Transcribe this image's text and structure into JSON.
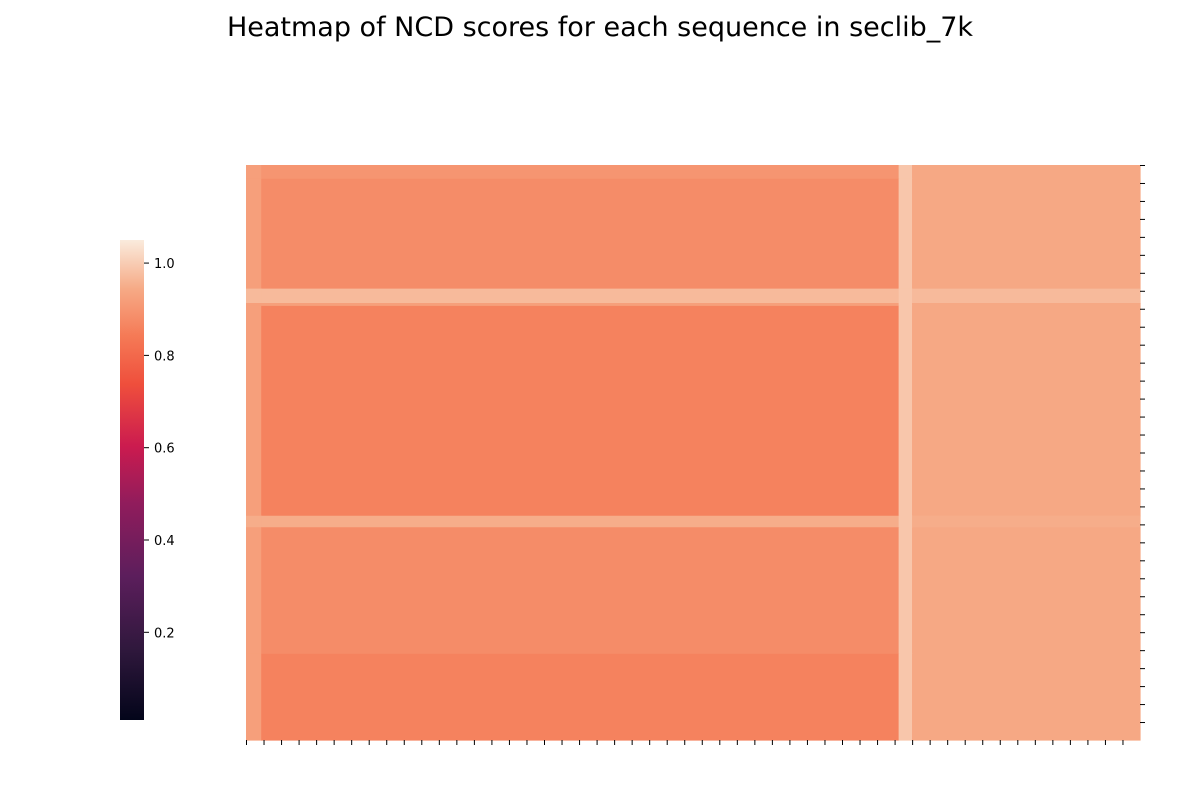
{
  "chart_data": {
    "type": "heatmap",
    "title": "Heatmap of NCD scores for each sequence in seclib_7k",
    "xlabel": "",
    "ylabel": "",
    "grid": false,
    "colormap": "rocket",
    "colorbar": {
      "range": [
        0.01,
        1.05
      ],
      "ticks": [
        0.2,
        0.4,
        0.6,
        0.8,
        1.0
      ],
      "tick_labels": [
        "0.2",
        "0.4",
        "0.6",
        "0.8",
        "1.0"
      ],
      "placement": "left"
    },
    "x_tick_count": 51,
    "y_tick_count": 32,
    "x_tick_labels_visible": false,
    "y_tick_labels_visible": false,
    "row_blocks": [
      {
        "from": 0.0,
        "to": 0.024,
        "value": 0.9
      },
      {
        "from": 0.024,
        "to": 0.215,
        "value": 0.88
      },
      {
        "from": 0.215,
        "to": 0.24,
        "value": 0.97
      },
      {
        "from": 0.24,
        "to": 0.245,
        "value": 0.92
      },
      {
        "from": 0.245,
        "to": 0.61,
        "value": 0.84
      },
      {
        "from": 0.61,
        "to": 0.63,
        "value": 0.95
      },
      {
        "from": 0.63,
        "to": 0.85,
        "value": 0.88
      },
      {
        "from": 0.85,
        "to": 1.0,
        "value": 0.86
      }
    ],
    "column_blocks": [
      {
        "from": 0.0,
        "to": 0.017,
        "value": 0.92
      },
      {
        "from": 0.017,
        "to": 0.73,
        "value": 0.86
      },
      {
        "from": 0.73,
        "to": 0.745,
        "value": 0.99
      },
      {
        "from": 0.745,
        "to": 1.0,
        "value": 0.94
      }
    ]
  }
}
